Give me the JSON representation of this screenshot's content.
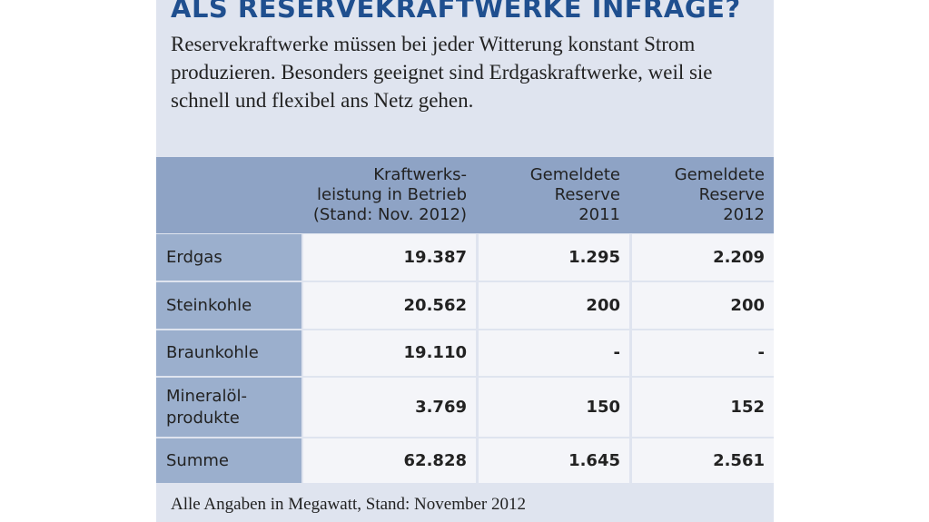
{
  "title": "ALS RESERVEKRAFTWERKE INFRAGE?",
  "intro": [
    "Reservekraftwerke müssen bei jeder Witterung konstant Strom",
    "produzieren. Besonders geeignet sind Erdgaskraftwerke, weil sie",
    "schnell und flexibel ans Netz gehen."
  ],
  "table": {
    "header": [
      [],
      [
        "Kraftwerks-",
        "leistung in Betrieb",
        "(Stand: Nov. 2012)"
      ],
      [
        "Gemeldete",
        "Reserve",
        "2011"
      ],
      [
        "Gemeldete",
        "Reserve",
        "2012"
      ]
    ],
    "rows": [
      [
        [
          "Erdgas"
        ],
        "19.387",
        "1.295",
        "2.209"
      ],
      [
        [
          "Steinkohle"
        ],
        "20.562",
        "200",
        "200"
      ],
      [
        [
          "Braunkohle"
        ],
        "19.110",
        "-",
        "-"
      ],
      [
        [
          "Mineralöl-",
          "produkte"
        ],
        "3.769",
        "150",
        "152"
      ],
      [
        [
          "Summe"
        ],
        "62.828",
        "1.645",
        "2.561"
      ]
    ]
  },
  "footnote": "Alle Angaben in Megawatt, Stand: November 2012"
}
